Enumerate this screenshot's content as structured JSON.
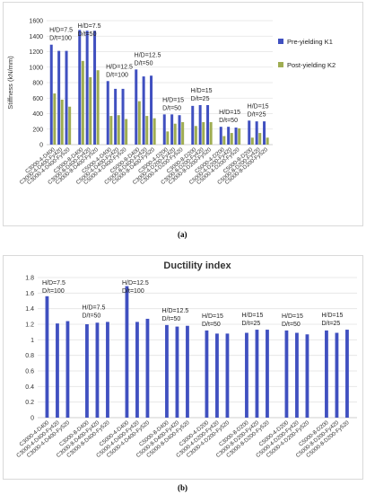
{
  "labels": {
    "a": "(a)",
    "b": "(b)"
  },
  "chart_data": [
    {
      "type": "bar",
      "title": "",
      "xlabel": "",
      "ylabel": "Stiffness (kN/mm)",
      "ylim": [
        0,
        1600
      ],
      "yticks": [
        0,
        200,
        400,
        600,
        800,
        1000,
        1200,
        1400,
        1600
      ],
      "grid": true,
      "legend": "right",
      "categories": [
        "C3000-4-D400",
        "C3000-4-D400-Fy420",
        "C3000-4-D400-Fy520",
        "C3000-8-D400",
        "C3000-8-D400-Fy420",
        "C3000-8-D400-Fy520",
        "C5000-4-D400",
        "C5000-4-D400-Fy420",
        "C5000-4-D400-Fy520",
        "C5000-8-D400",
        "C5000-8-D400-Fy420",
        "C5000-8-D400-Fy520",
        "C3000-4-D200",
        "C3000-4-D200-Fy420",
        "C3000-4-D200-Fy520",
        "C3000-8-D200",
        "C3000-8-D200-Fy420",
        "C3000-8-D200-Fy520",
        "C5000-4-D200",
        "C5000-4-D200-Fy420",
        "C5000-4-D200-Fy520",
        "C5000-8-D200",
        "C5000-8-D200-Fy420",
        "C5000-8-D200-Fy520"
      ],
      "series": [
        {
          "name": "Pre-yielding K1",
          "color": "#4050c0",
          "values": [
            1290,
            1210,
            1210,
            1480,
            1470,
            1470,
            820,
            720,
            720,
            970,
            880,
            890,
            390,
            390,
            380,
            500,
            510,
            510,
            230,
            230,
            220,
            310,
            300,
            300
          ]
        },
        {
          "name": "Post-yielding K2",
          "color": "#9fad52",
          "values": [
            660,
            580,
            490,
            1080,
            870,
            960,
            370,
            380,
            330,
            560,
            370,
            340,
            170,
            270,
            290,
            240,
            290,
            290,
            110,
            150,
            210,
            90,
            150,
            90
          ]
        }
      ],
      "annotations": [
        {
          "text": "H/D=7.5",
          "group": 0
        },
        {
          "text": "D/t=100",
          "group": 0
        },
        {
          "text": "H/D=7.5",
          "group": 1
        },
        {
          "text": "D/t=50",
          "group": 1
        },
        {
          "text": "H/D=12.5",
          "group": 2
        },
        {
          "text": "D/t=100",
          "group": 2
        },
        {
          "text": "H/D=12.5",
          "group": 3
        },
        {
          "text": "D/t=50",
          "group": 3
        },
        {
          "text": "H/D=15",
          "group": 4
        },
        {
          "text": "D/t=50",
          "group": 4
        },
        {
          "text": "H/D=15",
          "group": 5
        },
        {
          "text": "D/t=25",
          "group": 5
        },
        {
          "text": "H/D=15",
          "group": 6
        },
        {
          "text": "D/t=50",
          "group": 6
        },
        {
          "text": "H/D=15",
          "group": 7
        },
        {
          "text": "D/t=25",
          "group": 7
        }
      ]
    },
    {
      "type": "bar",
      "title": "Ductility index",
      "xlabel": "",
      "ylabel": "",
      "ylim": [
        0,
        1.8
      ],
      "yticks": [
        0,
        0.2,
        0.4,
        0.6,
        0.8,
        1,
        1.2,
        1.4,
        1.6,
        1.8
      ],
      "grid": true,
      "legend": "none",
      "categories": [
        "C3000-4-D400",
        "C3000-4-D400-Fy420",
        "C3000-4-D400-Fy520",
        "C3000-8-D400",
        "C3000-8-D400-Fy420",
        "C3000-8-D400-Fy520",
        "C5000-4-D400",
        "C5000-4-D400-Fy420",
        "C5000-4-D400-Fy520",
        "C5000-8-D400",
        "C5000-8-D400-Fy420",
        "C5000-8-D400-Fy520",
        "C3000-4-D200",
        "C3000-4-D200-Fy420",
        "C3000-4-D200-Fy520",
        "C3000-8-D200",
        "C3000-8-D200-Fy420",
        "C3000-8-D200-Fy520",
        "C5000-4-D200",
        "C5000-4-D200-Fy420",
        "C5000-4-D200-Fy520",
        "C5000-8-D200",
        "C5000-8-D200-Fy420",
        "C5000-8-D200-Fy520"
      ],
      "series": [
        {
          "name": "",
          "color": "#4050c0",
          "values": [
            1.56,
            1.21,
            1.24,
            1.2,
            1.22,
            1.23,
            1.69,
            1.23,
            1.27,
            1.19,
            1.17,
            1.18,
            1.12,
            1.08,
            1.08,
            1.09,
            1.13,
            1.13,
            1.12,
            1.09,
            1.07,
            1.12,
            1.09,
            1.13
          ]
        }
      ],
      "annotations": [
        {
          "text": "H/D=7.5",
          "group": 0
        },
        {
          "text": "D/t=100",
          "group": 0
        },
        {
          "text": "H/D=7.5",
          "group": 1
        },
        {
          "text": "D/t=50",
          "group": 1
        },
        {
          "text": "H/D=12.5",
          "group": 2
        },
        {
          "text": "D/t=100",
          "group": 2
        },
        {
          "text": "H/D=12.5",
          "group": 3
        },
        {
          "text": "D/t=50",
          "group": 3
        },
        {
          "text": "H/D=15",
          "group": 4
        },
        {
          "text": "D/t=50",
          "group": 4
        },
        {
          "text": "H/D=15",
          "group": 5
        },
        {
          "text": "D/t=25",
          "group": 5
        },
        {
          "text": "H/D=15",
          "group": 6
        },
        {
          "text": "D/t=50",
          "group": 6
        },
        {
          "text": "H/D=15",
          "group": 7
        },
        {
          "text": "D/t=25",
          "group": 7
        }
      ]
    }
  ]
}
